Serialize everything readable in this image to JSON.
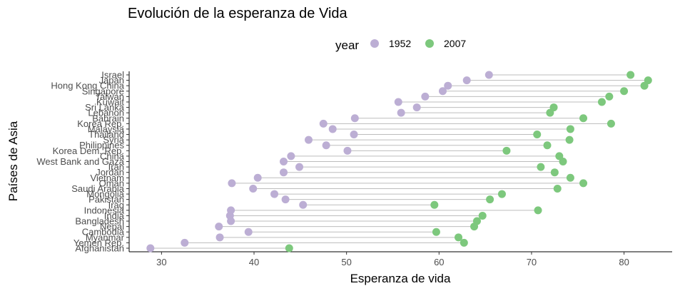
{
  "chart_data": {
    "type": "scatter",
    "title": "Evolución de la esperanza de Vida",
    "xlabel": "Esperanza de vida",
    "ylabel": "Países de Asia",
    "xlim": [
      26.5,
      85.2
    ],
    "xticks": [
      30,
      40,
      50,
      60,
      70,
      80
    ],
    "grid": false,
    "legend": {
      "title": "year",
      "placement": "top"
    },
    "series": [
      {
        "name": "1952",
        "color": "#bcaed4"
      },
      {
        "name": "2007",
        "color": "#7dc87d"
      }
    ],
    "categories": [
      "Israel",
      "Japan",
      "Hong Kong China",
      "Singapore",
      "Taiwan",
      "Kuwait",
      "Sri Lanka",
      "Lebanon",
      "Bahrain",
      "Korea Rep.",
      "Malaysia",
      "Thailand",
      "Syria",
      "Philippines",
      "Korea Dem. Rep.",
      "China",
      "West Bank and Gaza",
      "Iran",
      "Jordan",
      "Vietnam",
      "Oman",
      "Saudi Arabia",
      "Mongolia",
      "Pakistan",
      "Iraq",
      "Indonesia",
      "India",
      "Bangladesh",
      "Nepal",
      "Cambodia",
      "Myanmar",
      "Yemen Rep.",
      "Afghanistan"
    ],
    "values_1952": [
      65.4,
      63.0,
      60.96,
      60.4,
      58.5,
      55.6,
      57.6,
      55.9,
      50.9,
      47.5,
      48.5,
      50.8,
      45.9,
      47.8,
      50.1,
      44.0,
      43.2,
      44.9,
      43.2,
      40.4,
      37.6,
      39.9,
      42.2,
      43.4,
      45.3,
      37.5,
      37.4,
      37.5,
      36.2,
      39.4,
      36.3,
      32.5,
      28.8
    ],
    "values_2007": [
      80.7,
      82.6,
      82.2,
      80.0,
      78.4,
      77.6,
      72.4,
      72.0,
      75.6,
      78.6,
      74.2,
      70.6,
      74.1,
      71.7,
      67.3,
      73.0,
      73.4,
      71.0,
      72.5,
      74.2,
      75.6,
      72.8,
      66.8,
      65.5,
      59.5,
      70.7,
      64.7,
      64.1,
      63.8,
      59.7,
      62.1,
      62.7,
      43.8
    ]
  }
}
